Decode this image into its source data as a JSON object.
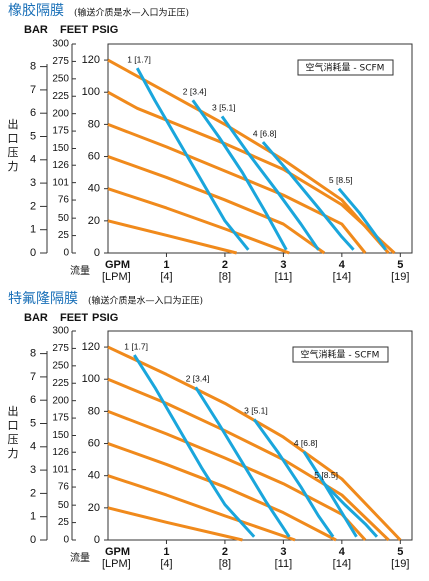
{
  "chart_data": [
    {
      "type": "line",
      "title": "橡胶隔膜",
      "subtitle": "(输送介质是水—入口为正压)",
      "axis_headers": [
        "BAR",
        "FEET",
        "PSIG"
      ],
      "y_label": "出口压力",
      "x_label": "流量",
      "x_unit": "GPM",
      "x_unit2": "[LPM]",
      "legend_title": "空气消耗量 - SCFM",
      "xlim": [
        0,
        5.2
      ],
      "xticks": [
        1,
        2,
        3,
        4,
        5
      ],
      "xtick_sublabels": [
        "[4]",
        "[8]",
        "[11]",
        "[14]",
        "[19]"
      ],
      "ylim": [
        0,
        130
      ],
      "yticks": [
        0,
        20,
        40,
        60,
        80,
        100,
        120
      ],
      "feet_lim": [
        0,
        300
      ],
      "feet_ticks": [
        0,
        25,
        50,
        76,
        101,
        126,
        150,
        175,
        200,
        225,
        250,
        275,
        300
      ],
      "bar_lim": [
        0,
        8.97
      ],
      "bar_ticks": [
        0,
        1,
        2,
        3,
        4,
        5,
        6,
        7,
        8
      ],
      "series": [
        {
          "color": "#f08a1c",
          "x": [
            0,
            1,
            2,
            3,
            4,
            4.8
          ],
          "values": [
            120,
            100,
            80,
            58,
            33,
            0
          ]
        },
        {
          "color": "#f08a1c",
          "x": [
            0,
            0.5,
            2,
            3,
            4,
            4.9
          ],
          "values": [
            100,
            90,
            68,
            52,
            30,
            0
          ]
        },
        {
          "color": "#f08a1c",
          "x": [
            0,
            1,
            2,
            3,
            4,
            4.4
          ],
          "values": [
            80,
            66,
            51,
            36,
            18,
            0
          ]
        },
        {
          "color": "#f08a1c",
          "x": [
            0,
            1,
            2,
            3,
            3.7
          ],
          "values": [
            60,
            47,
            33,
            18,
            0
          ]
        },
        {
          "color": "#f08a1c",
          "x": [
            0,
            1,
            2,
            3.1
          ],
          "values": [
            40,
            28,
            15,
            0
          ]
        },
        {
          "color": "#f08a1c",
          "x": [
            0,
            1,
            2.2
          ],
          "values": [
            20,
            11,
            0
          ]
        },
        {
          "name": "1 [1.7]",
          "color": "#1aa6dc",
          "x": [
            0.5,
            0.8,
            1.2,
            1.6,
            2,
            2.4
          ],
          "values": [
            115,
            95,
            70,
            45,
            20,
            2
          ]
        },
        {
          "name": "2 [3.4]",
          "color": "#1aa6dc",
          "x": [
            1.45,
            1.9,
            2.3,
            2.7,
            3.05
          ],
          "values": [
            95,
            72,
            50,
            25,
            2
          ]
        },
        {
          "name": "3 [5.1]",
          "color": "#1aa6dc",
          "x": [
            1.95,
            2.4,
            2.9,
            3.3,
            3.6
          ],
          "values": [
            85,
            62,
            38,
            18,
            2
          ]
        },
        {
          "name": "4 [6.8]",
          "color": "#1aa6dc",
          "x": [
            2.65,
            3.1,
            3.6,
            4,
            4.2
          ],
          "values": [
            69,
            50,
            28,
            10,
            2
          ]
        },
        {
          "name": "5 [8.5]",
          "color": "#1aa6dc",
          "x": [
            3.95,
            4.3,
            4.6,
            4.75
          ],
          "values": [
            40,
            25,
            10,
            2
          ]
        }
      ]
    },
    {
      "type": "line",
      "title": "特氟隆隔膜",
      "subtitle": "(输送介质是水—入口为正压)",
      "axis_headers": [
        "BAR",
        "FEET",
        "PSIG"
      ],
      "y_label": "出口压力",
      "x_label": "流量",
      "x_unit": "GPM",
      "x_unit2": "[LPM]",
      "legend_title": "空气消耗量 - SCFM",
      "xlim": [
        0,
        5.2
      ],
      "xticks": [
        1,
        2,
        3,
        4,
        5
      ],
      "xtick_sublabels": [
        "[4]",
        "[8]",
        "[11]",
        "[14]",
        "[19]"
      ],
      "ylim": [
        0,
        130
      ],
      "yticks": [
        0,
        20,
        40,
        60,
        80,
        100,
        120
      ],
      "feet_lim": [
        0,
        300
      ],
      "feet_ticks": [
        0,
        25,
        50,
        76,
        101,
        126,
        150,
        175,
        200,
        225,
        250,
        275,
        300
      ],
      "bar_lim": [
        0,
        8.97
      ],
      "bar_ticks": [
        0,
        1,
        2,
        3,
        4,
        5,
        6,
        7,
        8
      ],
      "series": [
        {
          "color": "#f08a1c",
          "x": [
            0,
            1,
            2,
            3,
            4,
            5
          ],
          "values": [
            120,
            103,
            85,
            64,
            38,
            0
          ]
        },
        {
          "color": "#f08a1c",
          "x": [
            0,
            1,
            2,
            3,
            4,
            4.8
          ],
          "values": [
            100,
            85,
            68,
            50,
            28,
            0
          ]
        },
        {
          "color": "#f08a1c",
          "x": [
            0,
            1,
            2,
            3,
            4,
            4.4
          ],
          "values": [
            80,
            66,
            51,
            35,
            16,
            0
          ]
        },
        {
          "color": "#f08a1c",
          "x": [
            0,
            1,
            2,
            3,
            3.9
          ],
          "values": [
            60,
            47,
            33,
            17,
            0
          ]
        },
        {
          "color": "#f08a1c",
          "x": [
            0,
            1,
            2,
            3.2
          ],
          "values": [
            40,
            28,
            15,
            0
          ]
        },
        {
          "color": "#f08a1c",
          "x": [
            0,
            1,
            2.3
          ],
          "values": [
            20,
            11,
            0
          ]
        },
        {
          "name": "1 [1.7]",
          "color": "#1aa6dc",
          "x": [
            0.45,
            0.8,
            1.2,
            1.6,
            2,
            2.5
          ],
          "values": [
            115,
            95,
            70,
            45,
            22,
            2
          ]
        },
        {
          "name": "2 [3.4]",
          "color": "#1aa6dc",
          "x": [
            1.5,
            1.9,
            2.3,
            2.7,
            3.1
          ],
          "values": [
            95,
            72,
            48,
            24,
            2
          ]
        },
        {
          "name": "3 [5.1]",
          "color": "#1aa6dc",
          "x": [
            2.5,
            2.9,
            3.3,
            3.6,
            3.85
          ],
          "values": [
            75,
            55,
            33,
            15,
            2
          ]
        },
        {
          "name": "4 [6.8]",
          "color": "#1aa6dc",
          "x": [
            3.35,
            3.7,
            4,
            4.25
          ],
          "values": [
            55,
            35,
            17,
            2
          ]
        },
        {
          "name": "5 [8.5]",
          "color": "#1aa6dc",
          "x": [
            3.7,
            4.05,
            4.4,
            4.6
          ],
          "values": [
            35,
            22,
            10,
            2
          ]
        }
      ]
    }
  ]
}
